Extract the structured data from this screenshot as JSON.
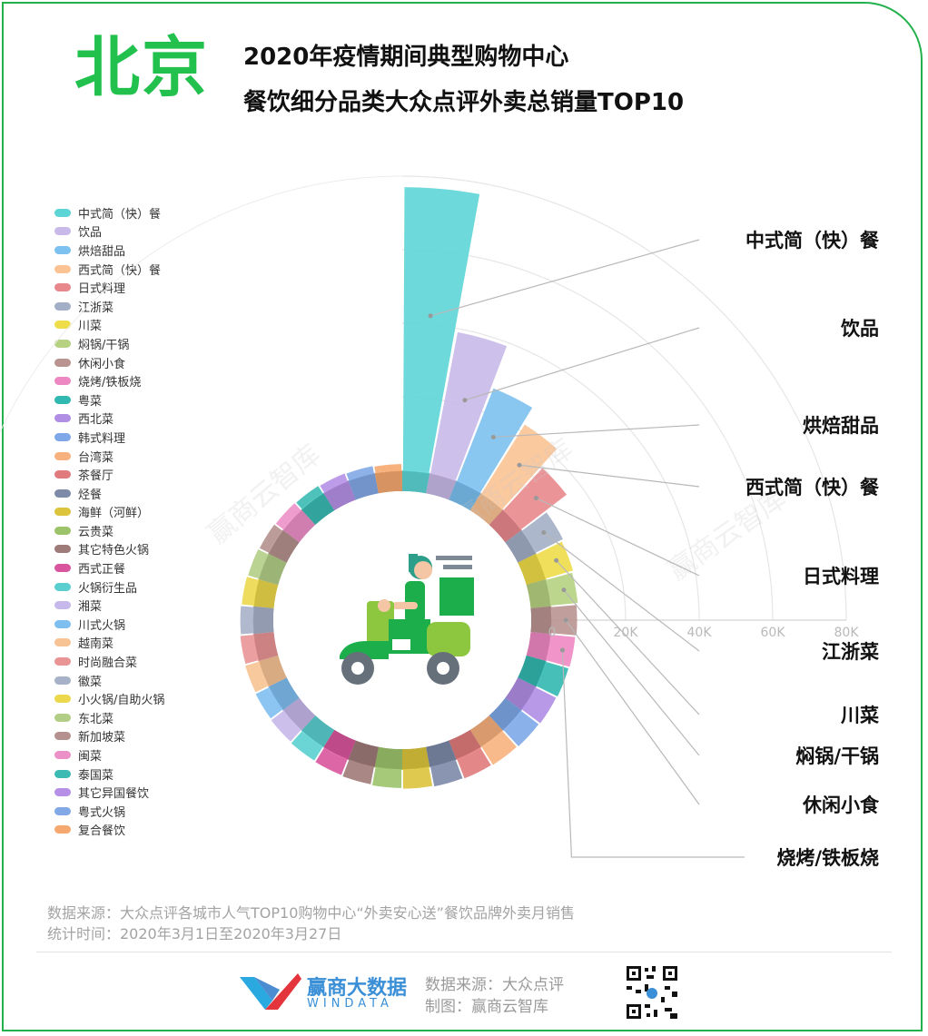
{
  "header": {
    "city": "北京",
    "title_line1": "2020年疫情期间典型购物中心",
    "title_line2": "餐饮细分品类大众点评外卖总销量TOP10"
  },
  "colors": {
    "frame": "#22b14c",
    "city": "#22c14d"
  },
  "chart_data": {
    "type": "bar",
    "subtype": "polar-rose",
    "axis_ticks": [
      "0",
      "20K",
      "40K",
      "60K",
      "80K"
    ],
    "rlim": [
      0,
      80000
    ],
    "grid": true,
    "legend_position": "left",
    "watermark": "赢商云智库",
    "categories": [
      {
        "name": "中式简（快）餐",
        "value": 77000,
        "color": "#5dd5d6"
      },
      {
        "name": "饮品",
        "value": 39000,
        "color": "#c8b9e8"
      },
      {
        "name": "烘焙甜品",
        "value": 27000,
        "color": "#7cc1ef"
      },
      {
        "name": "西式简（快）餐",
        "value": 22000,
        "color": "#fbc393"
      },
      {
        "name": "日式料理",
        "value": 15500,
        "color": "#e8888c"
      },
      {
        "name": "江浙菜",
        "value": 8200,
        "color": "#a3afc6"
      },
      {
        "name": "川菜",
        "value": 7600,
        "color": "#eedc48"
      },
      {
        "name": "焖锅/干锅",
        "value": 7200,
        "color": "#b5d181"
      },
      {
        "name": "休闲小食",
        "value": 6800,
        "color": "#b99390"
      },
      {
        "name": "烧烤/铁板烧",
        "value": 6500,
        "color": "#ee88c3"
      },
      {
        "name": "粤菜",
        "value": 6300,
        "color": "#31b8b0"
      },
      {
        "name": "西北菜",
        "value": 6100,
        "color": "#b08ee4"
      },
      {
        "name": "韩式料理",
        "value": 5900,
        "color": "#7ea8e8"
      },
      {
        "name": "台湾菜",
        "value": 5700,
        "color": "#f7b17e"
      },
      {
        "name": "茶餐厅",
        "value": 5500,
        "color": "#e07a7c"
      },
      {
        "name": "烃餐",
        "value": 5300,
        "color": "#7d8aa8"
      },
      {
        "name": "海鲜（河鲜）",
        "value": 5100,
        "color": "#dcc43c"
      },
      {
        "name": "云贵菜",
        "value": 4900,
        "color": "#9cc36a"
      },
      {
        "name": "其它特色火锅",
        "value": 4700,
        "color": "#9e7a78"
      },
      {
        "name": "西式正餐",
        "value": 4500,
        "color": "#d9559d"
      },
      {
        "name": "火锅衍生品",
        "value": 4300,
        "color": "#5bcfd0"
      },
      {
        "name": "湘菜",
        "value": 4100,
        "color": "#c6b8ea"
      },
      {
        "name": "川式火锅",
        "value": 3900,
        "color": "#7fbff0"
      },
      {
        "name": "越南菜",
        "value": 3700,
        "color": "#f8c394"
      },
      {
        "name": "时尚融合菜",
        "value": 3500,
        "color": "#e99596"
      },
      {
        "name": "徽菜",
        "value": 3300,
        "color": "#a7b1c8"
      },
      {
        "name": "小火锅/自助火锅",
        "value": 3100,
        "color": "#ecd84c"
      },
      {
        "name": "东北菜",
        "value": 2900,
        "color": "#b2cd86"
      },
      {
        "name": "新加坡菜",
        "value": 2700,
        "color": "#b4918e"
      },
      {
        "name": "闽菜",
        "value": 2500,
        "color": "#ec90c8"
      },
      {
        "name": "泰国菜",
        "value": 2300,
        "color": "#3bbab3"
      },
      {
        "name": "其它异国餐饮",
        "value": 2100,
        "color": "#b590e6"
      },
      {
        "name": "粤式火锅",
        "value": 1900,
        "color": "#82a9e6"
      },
      {
        "name": "复合餐饮",
        "value": 1700,
        "color": "#f5a86f"
      }
    ]
  },
  "source": {
    "line1": "数据来源：大众点评各城市人气TOP10购物中心“外卖安心送”餐饮品牌外卖月销售",
    "line2": "统计时间：2020年3月1日至2020年3月27日"
  },
  "footer": {
    "brand_cn": "赢商大数据",
    "brand_en": "WINDATA",
    "source": "数据来源：大众点评",
    "made_by": "制图：赢商云智库"
  }
}
